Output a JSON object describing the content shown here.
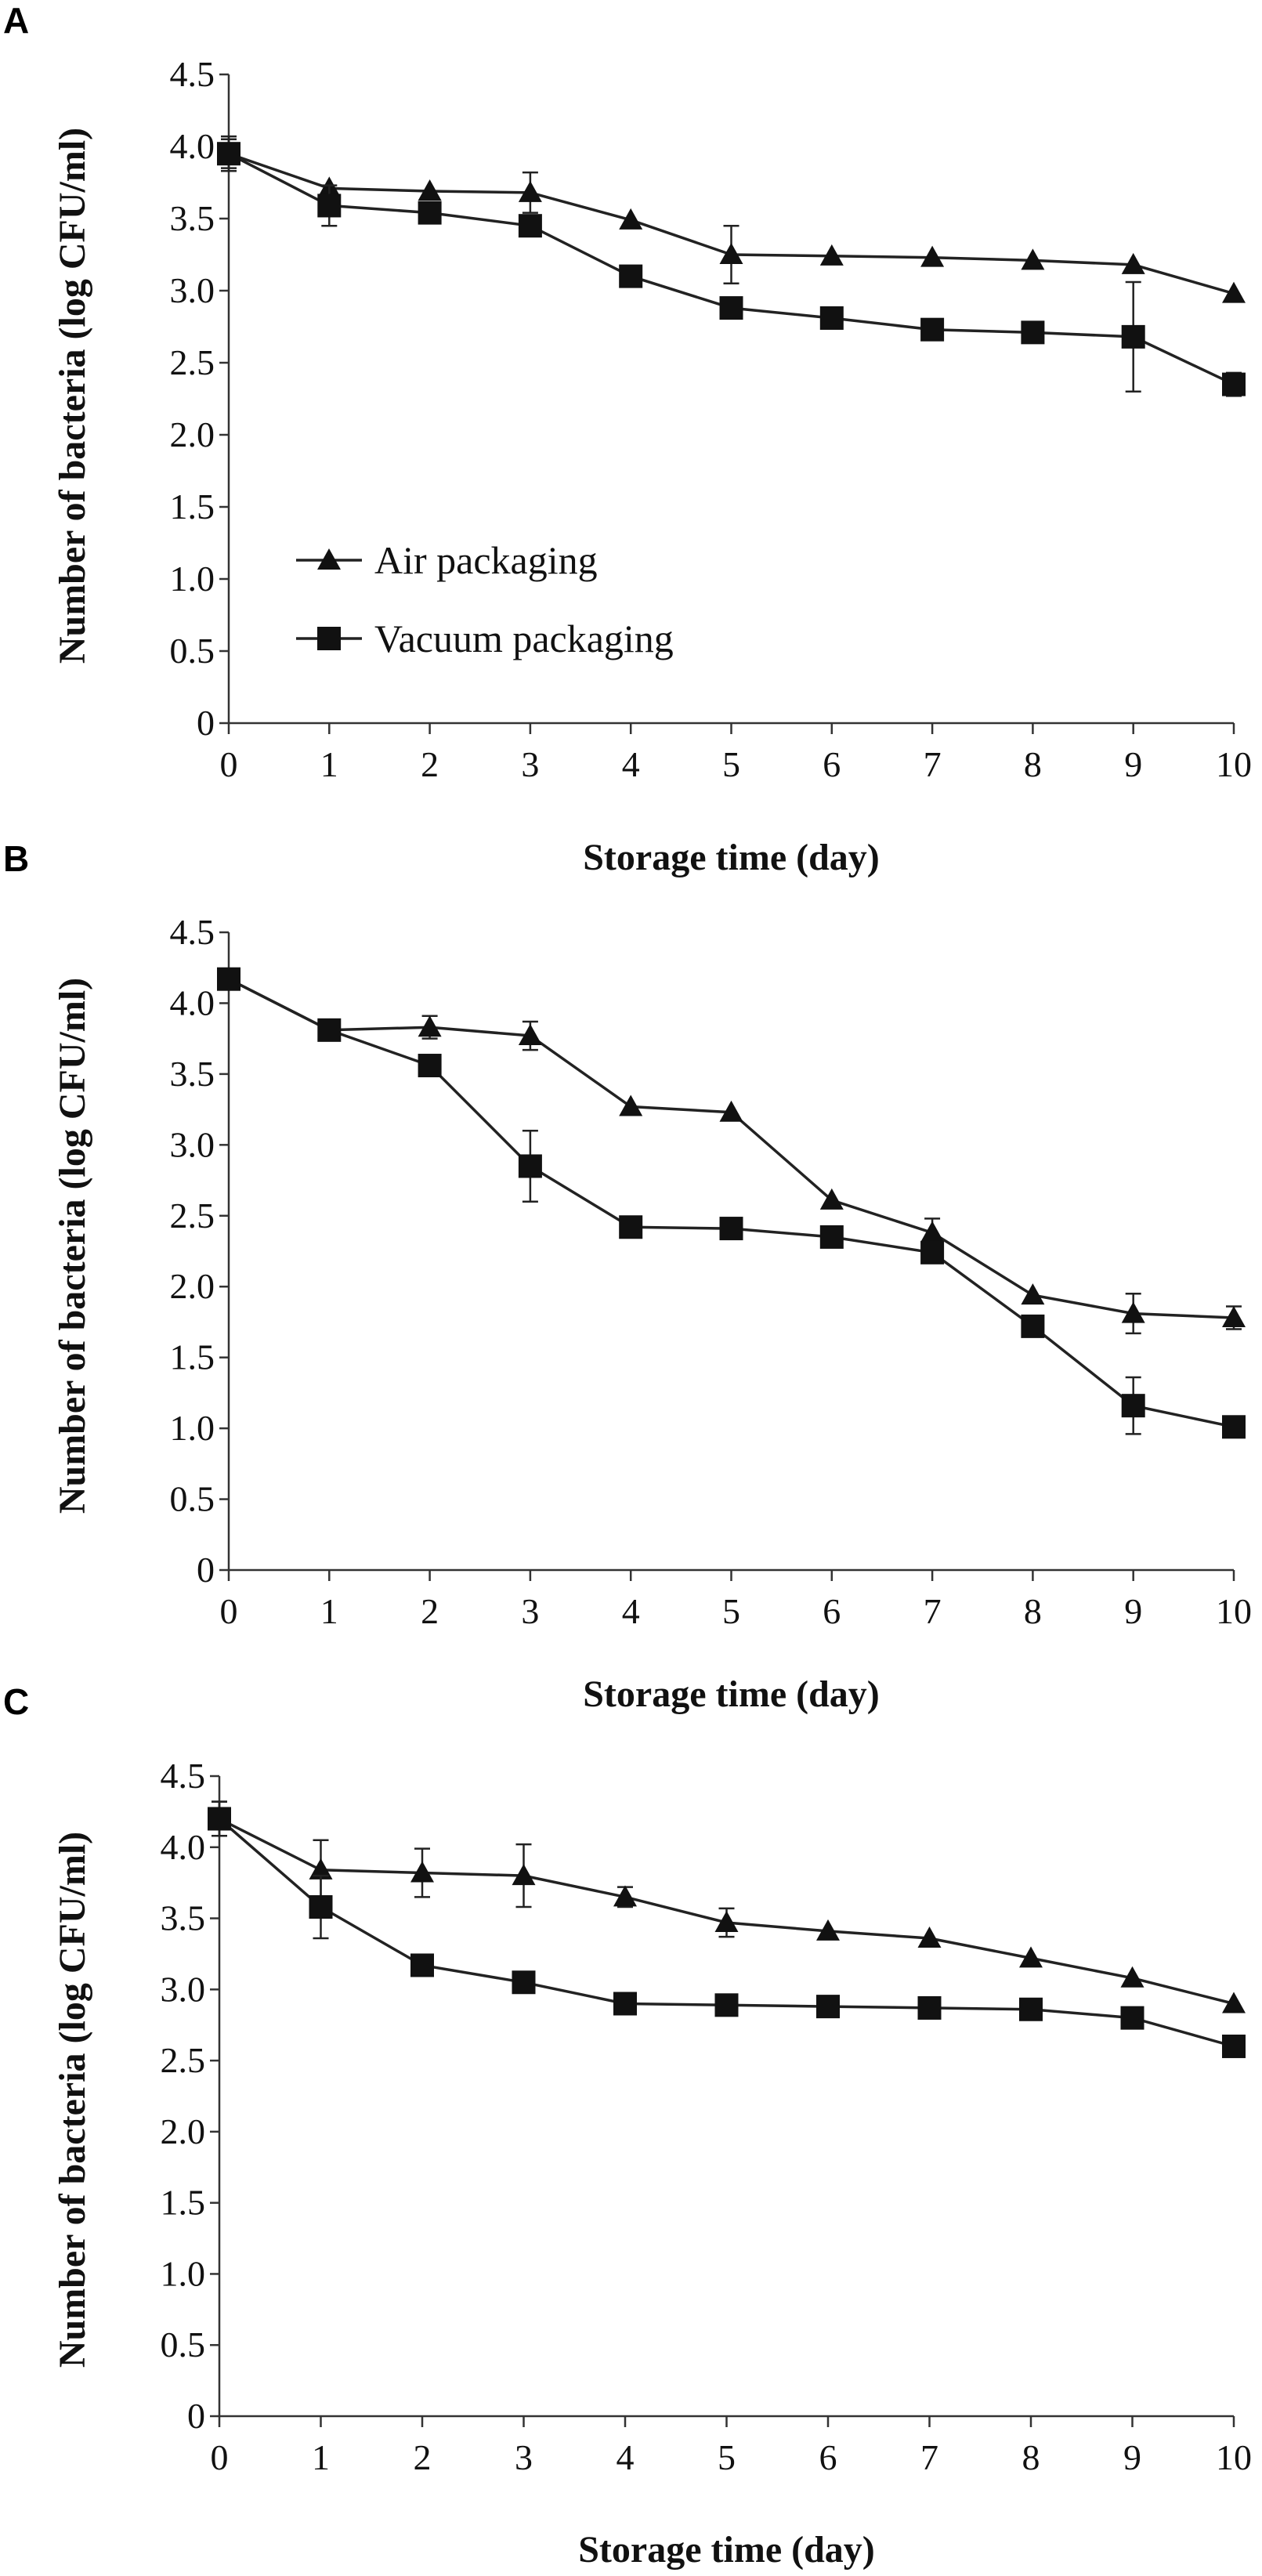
{
  "chart_data": [
    {
      "panel_label": "A",
      "type": "line",
      "x": [
        0,
        1,
        2,
        3,
        4,
        5,
        6,
        7,
        8,
        9,
        10
      ],
      "xlabel": "Storage time (day)",
      "ylabel": "Number of bacteria (log CFU/ml)",
      "ylim": [
        0,
        4.5
      ],
      "xlim": [
        0,
        10
      ],
      "yticks": [
        "0",
        "0.5",
        "1.0",
        "1.5",
        "2.0",
        "2.5",
        "3.0",
        "3.5",
        "4.0",
        "4.5"
      ],
      "xticks": [
        "0",
        "1",
        "2",
        "3",
        "4",
        "5",
        "6",
        "7",
        "8",
        "9",
        "10"
      ],
      "legend": "inside-left",
      "series": [
        {
          "name": "Air packaging",
          "marker": "triangle",
          "values": [
            3.95,
            3.71,
            3.69,
            3.68,
            3.49,
            3.25,
            3.24,
            3.23,
            3.21,
            3.18,
            2.98
          ],
          "errors": [
            0.1,
            0.05,
            0.05,
            0.14,
            0.03,
            0.2,
            0.03,
            0.03,
            0.03,
            0.03,
            0.03
          ]
        },
        {
          "name": "Vacuum packaging",
          "marker": "square",
          "values": [
            3.95,
            3.59,
            3.54,
            3.45,
            3.1,
            2.88,
            2.81,
            2.73,
            2.71,
            2.68,
            2.35
          ],
          "errors": [
            0.12,
            0.14,
            0.05,
            0.05,
            0.04,
            0.04,
            0.03,
            0.03,
            0.03,
            0.38,
            0.08
          ]
        }
      ]
    },
    {
      "panel_label": "B",
      "type": "line",
      "x": [
        0,
        1,
        2,
        3,
        4,
        5,
        6,
        7,
        8,
        9,
        10
      ],
      "xlabel": "Storage time (day)",
      "ylabel": "Number of bacteria (log CFU/ml)",
      "ylim": [
        0,
        4.5
      ],
      "xlim": [
        0,
        10
      ],
      "yticks": [
        "0",
        "0.5",
        "1.0",
        "1.5",
        "2.0",
        "2.5",
        "3.0",
        "3.5",
        "4.0",
        "4.5"
      ],
      "xticks": [
        "0",
        "1",
        "2",
        "3",
        "4",
        "5",
        "6",
        "7",
        "8",
        "9",
        "10"
      ],
      "legend": "none",
      "series": [
        {
          "name": "Air packaging",
          "marker": "triangle",
          "values": [
            4.17,
            3.81,
            3.83,
            3.77,
            3.27,
            3.23,
            2.61,
            2.38,
            1.94,
            1.81,
            1.78
          ],
          "errors": [
            0.03,
            0.03,
            0.08,
            0.1,
            0.03,
            0.03,
            0.05,
            0.1,
            0.03,
            0.14,
            0.08
          ]
        },
        {
          "name": "Vacuum packaging",
          "marker": "square",
          "values": [
            4.17,
            3.81,
            3.56,
            2.85,
            2.42,
            2.41,
            2.35,
            2.24,
            1.72,
            1.16,
            1.01
          ],
          "errors": [
            0.03,
            0.03,
            0.03,
            0.25,
            0.03,
            0.03,
            0.03,
            0.05,
            0.03,
            0.2,
            0.03
          ]
        }
      ]
    },
    {
      "panel_label": "C",
      "type": "line",
      "x": [
        0,
        1,
        2,
        3,
        4,
        5,
        6,
        7,
        8,
        9,
        10
      ],
      "xlabel": "Storage time (day)",
      "ylabel": "Number of bacteria (log CFU/ml)",
      "ylim": [
        0,
        4.5
      ],
      "xlim": [
        0,
        10
      ],
      "yticks": [
        "0",
        "0.5",
        "1.0",
        "1.5",
        "2.0",
        "2.5",
        "3.0",
        "3.5",
        "4.0",
        "4.5"
      ],
      "xticks": [
        "0",
        "1",
        "2",
        "3",
        "4",
        "5",
        "6",
        "7",
        "8",
        "9",
        "10"
      ],
      "legend": "none",
      "series": [
        {
          "name": "Air packaging",
          "marker": "triangle",
          "values": [
            4.2,
            3.84,
            3.82,
            3.8,
            3.65,
            3.47,
            3.41,
            3.36,
            3.22,
            3.08,
            2.9
          ],
          "errors": [
            0.12,
            0.21,
            0.17,
            0.22,
            0.07,
            0.1,
            0.04,
            0.03,
            0.03,
            0.03,
            0.03
          ]
        },
        {
          "name": "Vacuum packaging",
          "marker": "square",
          "values": [
            4.2,
            3.58,
            3.17,
            3.05,
            2.9,
            2.89,
            2.88,
            2.87,
            2.86,
            2.8,
            2.6
          ],
          "errors": [
            0.12,
            0.22,
            0.04,
            0.04,
            0.03,
            0.03,
            0.03,
            0.03,
            0.04,
            0.04,
            0.03
          ]
        }
      ]
    }
  ]
}
